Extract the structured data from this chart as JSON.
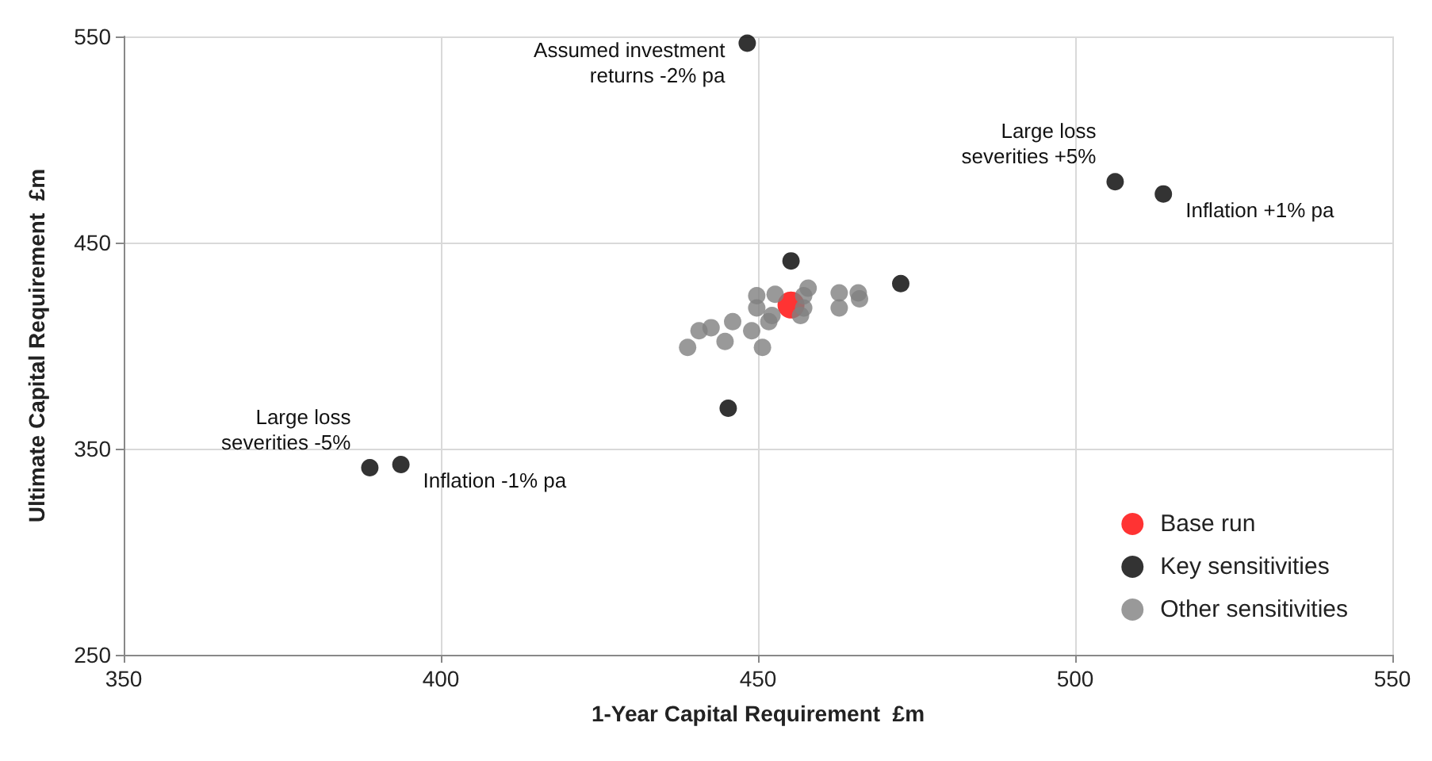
{
  "chart_data": {
    "type": "scatter",
    "xlabel": "1-Year Capital Requirement  £m",
    "ylabel": "Ultimate Capital Requirement  £m",
    "xlim": [
      350,
      550
    ],
    "xticks": [
      350,
      400,
      450,
      500,
      550
    ],
    "ylim": [
      250,
      550
    ],
    "yticks": [
      250,
      350,
      450,
      550
    ],
    "grid": true,
    "legend": "bottom right",
    "marker": "circle",
    "series": [
      {
        "name": "Base run",
        "color": "#ff0000",
        "x": [
          455.2
        ],
        "values": [
          419.7
        ]
      },
      {
        "name": "Key sensitivities",
        "color": "#000000",
        "x": [
          455.2,
          472.5,
          445.3,
          448.3,
          506.3,
          513.9,
          388.8,
          393.7
        ],
        "values": [
          441.1,
          430.1,
          369.6,
          546.7,
          479.5,
          473.6,
          340.8,
          342.3
        ]
      },
      {
        "name": "Other sensitivities",
        "color": "#808080",
        "x": [
          438.9,
          440.7,
          442.6,
          444.8,
          446.0,
          449.0,
          450.7,
          449.8,
          452.7,
          449.8,
          451.7,
          452.2,
          457.9,
          457.2,
          456.7,
          457.2,
          462.8,
          462.8,
          465.8,
          466.0
        ],
        "values": [
          399.1,
          407.2,
          408.7,
          402.0,
          411.6,
          407.2,
          399.1,
          424.2,
          424.9,
          418.3,
          411.6,
          414.6,
          427.9,
          424.2,
          414.6,
          418.3,
          425.6,
          418.3,
          425.6,
          422.7
        ]
      }
    ],
    "annotations": [
      {
        "text": "Assumed investment\nreturns -2% pa",
        "x": 448.3,
        "y": 546.7
      },
      {
        "text": "Large loss\nseverities +5%",
        "x": 506.3,
        "y": 479.5
      },
      {
        "text": "Inflation +1% pa",
        "x": 513.9,
        "y": 473.6
      },
      {
        "text": "Large loss\nseverities -5%",
        "x": 388.8,
        "y": 340.8
      },
      {
        "text": "Inflation -1% pa",
        "x": 393.7,
        "y": 342.3
      }
    ]
  }
}
